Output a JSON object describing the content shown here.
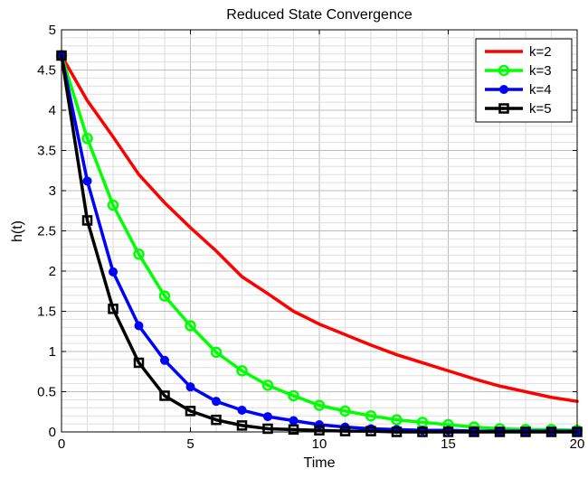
{
  "chart_data": {
    "type": "line",
    "title": "Reduced State Convergence",
    "xlabel": "Time",
    "ylabel": "h(t)",
    "xlim": [
      0,
      20
    ],
    "ylim": [
      0,
      5
    ],
    "grid": true,
    "minor_grid": true,
    "legend_position": "top-right",
    "x_ticks": [
      "0",
      "5",
      "10",
      "15",
      "20"
    ],
    "y_ticks": [
      "0",
      "0.5",
      "1",
      "1.5",
      "2",
      "2.5",
      "3",
      "3.5",
      "4",
      "4.5",
      "5"
    ],
    "x": [
      0,
      1,
      2,
      3,
      4,
      5,
      6,
      7,
      8,
      9,
      10,
      11,
      12,
      13,
      14,
      15,
      16,
      17,
      18,
      19,
      20
    ],
    "series": [
      {
        "name": "k=2",
        "color": "#ff0000",
        "marker": "none",
        "values": [
          4.68,
          4.12,
          3.67,
          3.2,
          2.85,
          2.54,
          2.25,
          1.93,
          1.72,
          1.5,
          1.34,
          1.21,
          1.08,
          0.96,
          0.86,
          0.76,
          0.66,
          0.57,
          0.5,
          0.43,
          0.38
        ]
      },
      {
        "name": "k=3",
        "color": "#00ff00",
        "marker": "open-circle",
        "values": [
          4.68,
          3.65,
          2.82,
          2.21,
          1.69,
          1.32,
          0.99,
          0.76,
          0.58,
          0.45,
          0.33,
          0.26,
          0.2,
          0.15,
          0.12,
          0.09,
          0.06,
          0.04,
          0.03,
          0.03,
          0.02
        ]
      },
      {
        "name": "k=4",
        "color": "#0000ff",
        "marker": "filled-circle",
        "values": [
          4.68,
          3.12,
          1.99,
          1.32,
          0.89,
          0.56,
          0.38,
          0.27,
          0.19,
          0.14,
          0.09,
          0.06,
          0.04,
          0.03,
          0.02,
          0.02,
          0.01,
          0.01,
          0.01,
          0.01,
          0.01
        ]
      },
      {
        "name": "k=5",
        "color": "#000000",
        "marker": "open-square",
        "values": [
          4.68,
          2.63,
          1.53,
          0.86,
          0.45,
          0.26,
          0.15,
          0.08,
          0.04,
          0.03,
          0.02,
          0.01,
          0.01,
          0.0,
          0.0,
          0.0,
          0.0,
          0.0,
          0.0,
          0.0,
          0.0
        ]
      }
    ]
  }
}
